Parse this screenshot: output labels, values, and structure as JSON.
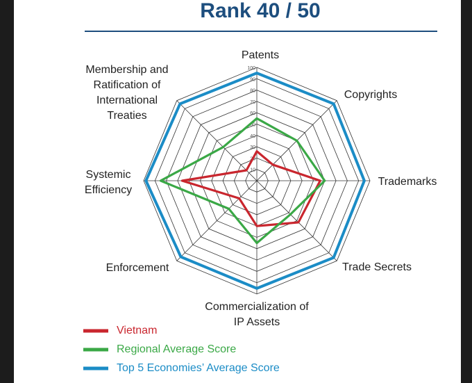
{
  "chart_data": {
    "type": "radar",
    "title": "Rank 40 / 50",
    "categories": [
      "Patents",
      "Copyrights",
      "Trademarks",
      "Trade Secrets",
      "Commercialization of IP Assets",
      "Enforcement",
      "Systemic Efficiency",
      "Membership and Ratification of International Treaties"
    ],
    "series": [
      {
        "name": "Vietnam",
        "color": "#c9262e",
        "values": [
          26,
          20,
          56,
          52,
          40,
          22,
          66,
          13
        ]
      },
      {
        "name": "Regional Average Score",
        "color": "#3aa846",
        "values": [
          55,
          50,
          60,
          42,
          55,
          35,
          85,
          42
        ]
      },
      {
        "name": "Top 5 Economies’ Average Score",
        "color": "#1b8cc6",
        "values": [
          95,
          96,
          95,
          96,
          95,
          95,
          98,
          96
        ]
      }
    ],
    "rlim": [
      0,
      100
    ],
    "rticks": [
      10,
      20,
      30,
      40,
      50,
      60,
      70,
      80,
      90,
      100
    ],
    "grid": true
  }
}
